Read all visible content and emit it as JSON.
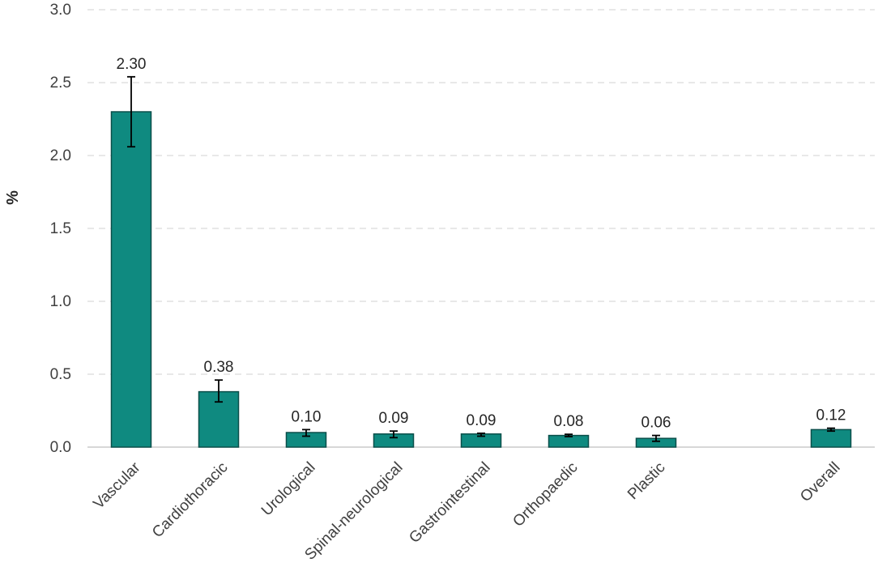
{
  "chart_data": {
    "type": "bar",
    "title": "",
    "xlabel": "",
    "ylabel": "%",
    "ylim": [
      0,
      3.0
    ],
    "yticks": [
      "0.0",
      "0.5",
      "1.0",
      "1.5",
      "2.0",
      "2.5",
      "3.0"
    ],
    "grid": true,
    "legend": "none",
    "bar_color": "#0f8a80",
    "categories": [
      "Vascular",
      "Cardiothoracic",
      "Urological",
      "Spinal-neurological",
      "Gastrointestinal",
      "Orthopaedic",
      "Plastic",
      "",
      "Overall"
    ],
    "values": [
      2.3,
      0.38,
      0.1,
      0.09,
      0.09,
      0.08,
      0.06,
      null,
      0.12
    ],
    "data_labels": [
      "2.30",
      "0.38",
      "0.10",
      "0.09",
      "0.09",
      "0.08",
      "0.06",
      "",
      "0.12"
    ],
    "error_low": [
      2.06,
      0.31,
      0.075,
      0.065,
      0.075,
      0.072,
      0.04,
      null,
      0.11
    ],
    "error_high": [
      2.54,
      0.46,
      0.12,
      0.11,
      0.095,
      0.088,
      0.08,
      null,
      0.13
    ]
  }
}
